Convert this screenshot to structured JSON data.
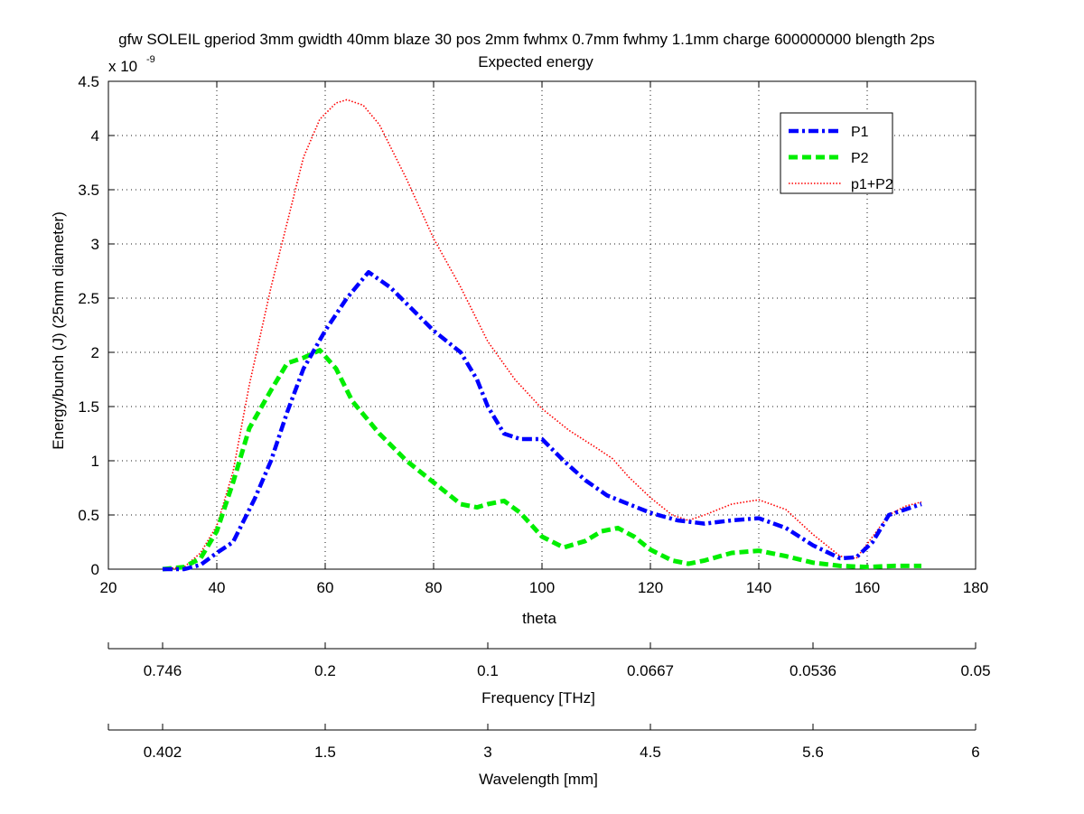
{
  "chart_data": {
    "type": "line",
    "title": "gfw SOLEIL gperiod 3mm gwidth 40mm blaze 30 pos 2mm fwhmx 0.7mm fwhmy 1.1mm charge 600000000 blength 2ps",
    "subtitle": "Expected energy",
    "xlabel": "theta",
    "ylabel": "Energy/bunch (J)  (25mm diameter)",
    "y_exponent_label_base": "x 10",
    "y_exponent_label_power": "-9",
    "xlim": [
      20,
      180
    ],
    "ylim": [
      0,
      4.5
    ],
    "x_ticks": [
      20,
      40,
      60,
      80,
      100,
      120,
      140,
      160,
      180
    ],
    "y_ticks": [
      0,
      0.5,
      1,
      1.5,
      2,
      2.5,
      3,
      3.5,
      4,
      4.5
    ],
    "y_tick_labels": [
      "0",
      "0.5",
      "1",
      "1.5",
      "2",
      "2.5",
      "3",
      "3.5",
      "4",
      "4.5"
    ],
    "grid": true,
    "legend_position": "top-right",
    "series": [
      {
        "name": "P1",
        "color": "#0000ff",
        "style": "dash-dot",
        "x": [
          30,
          34,
          37,
          40,
          43,
          47,
          50,
          53,
          56,
          60,
          64,
          68,
          72,
          76,
          80,
          85,
          88,
          90,
          93,
          96,
          100,
          104,
          108,
          112,
          116,
          120,
          125,
          130,
          135,
          140,
          145,
          150,
          155,
          158,
          161,
          164,
          167,
          170
        ],
        "y": [
          0.0,
          0.0,
          0.04,
          0.15,
          0.25,
          0.65,
          1.0,
          1.45,
          1.85,
          2.2,
          2.5,
          2.74,
          2.6,
          2.4,
          2.2,
          2.0,
          1.75,
          1.5,
          1.25,
          1.2,
          1.2,
          1.0,
          0.82,
          0.68,
          0.6,
          0.52,
          0.45,
          0.42,
          0.45,
          0.47,
          0.38,
          0.22,
          0.1,
          0.11,
          0.25,
          0.5,
          0.55,
          0.6
        ]
      },
      {
        "name": "P2",
        "color": "#00ee00",
        "style": "dashed",
        "x": [
          30,
          34,
          37,
          40,
          43,
          46,
          50,
          53,
          56,
          59,
          62,
          65,
          70,
          75,
          80,
          85,
          88,
          90,
          93,
          96,
          100,
          104,
          108,
          111,
          114,
          117,
          120,
          124,
          127,
          130,
          135,
          140,
          145,
          150,
          155,
          160,
          165,
          170
        ],
        "y": [
          0.0,
          0.02,
          0.1,
          0.35,
          0.8,
          1.3,
          1.65,
          1.9,
          1.95,
          2.02,
          1.85,
          1.55,
          1.25,
          1.0,
          0.8,
          0.6,
          0.57,
          0.6,
          0.63,
          0.52,
          0.3,
          0.2,
          0.26,
          0.35,
          0.38,
          0.3,
          0.18,
          0.08,
          0.05,
          0.08,
          0.15,
          0.17,
          0.12,
          0.06,
          0.03,
          0.02,
          0.03,
          0.03
        ]
      },
      {
        "name": "p1+P2",
        "color": "#ff0000",
        "style": "dotted",
        "x": [
          30,
          34,
          37,
          40,
          43,
          46,
          50,
          53,
          56,
          59,
          62,
          64,
          67,
          70,
          75,
          80,
          85,
          90,
          95,
          100,
          105,
          110,
          113,
          116,
          120,
          124,
          127,
          130,
          135,
          140,
          145,
          150,
          155,
          158,
          161,
          164,
          167,
          170
        ],
        "y": [
          0.0,
          0.02,
          0.15,
          0.4,
          0.9,
          1.7,
          2.6,
          3.2,
          3.8,
          4.15,
          4.3,
          4.33,
          4.28,
          4.1,
          3.6,
          3.05,
          2.6,
          2.1,
          1.75,
          1.48,
          1.28,
          1.12,
          1.02,
          0.85,
          0.66,
          0.5,
          0.45,
          0.5,
          0.6,
          0.64,
          0.55,
          0.32,
          0.12,
          0.1,
          0.3,
          0.5,
          0.58,
          0.62
        ]
      }
    ],
    "secondary_axes": [
      {
        "name": "frequency",
        "label": "Frequency [THz]",
        "tick_theta": [
          30,
          60,
          90,
          120,
          150,
          180
        ],
        "tick_labels": [
          "0.746",
          "0.2",
          "0.1",
          "0.0667",
          "0.0536",
          "0.05"
        ],
        "frame_start_theta": 20
      },
      {
        "name": "wavelength",
        "label": "Wavelength [mm]",
        "tick_theta": [
          30,
          60,
          90,
          120,
          150,
          180
        ],
        "tick_labels": [
          "0.402",
          "1.5",
          "3",
          "4.5",
          "5.6",
          "6"
        ],
        "frame_start_theta": 20
      }
    ]
  }
}
